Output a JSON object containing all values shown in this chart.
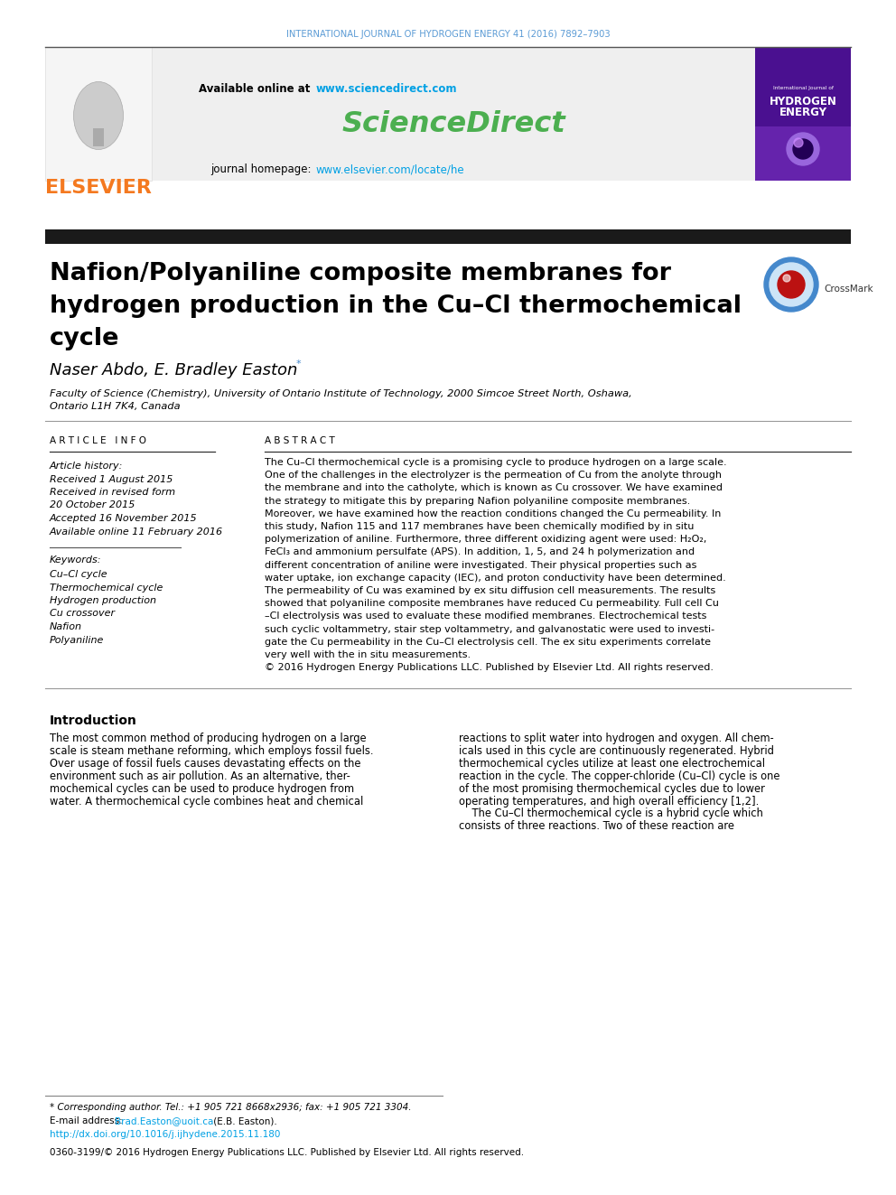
{
  "journal_header": "INTERNATIONAL JOURNAL OF HYDROGEN ENERGY 41 (2016) 7892–7903",
  "journal_header_color": "#5b9bd5",
  "sciencedirect_url": "www.sciencedirect.com",
  "sciencedirect_url_color": "#00a0e4",
  "sciencedirect_logo": "ScienceDirect",
  "sciencedirect_logo_color": "#4caf50",
  "journal_homepage_url": "www.elsevier.com/locate/he",
  "journal_homepage_url_color": "#00a0e4",
  "elsevier_text": "ELSEVIER",
  "elsevier_color": "#f47920",
  "paper_title_lines": [
    "Nafion/Polyaniline composite membranes for",
    "hydrogen production in the Cu–Cl thermochemical",
    "cycle"
  ],
  "authors_text": "Naser Abdo, E. Bradley Easton",
  "affiliation_line1": "Faculty of Science (Chemistry), University of Ontario Institute of Technology, 2000 Simcoe Street North, Oshawa,",
  "affiliation_line2": "Ontario L1H 7K4, Canada",
  "article_info_header": "A R T I C L E   I N F O",
  "abstract_header": "A B S T R A C T",
  "article_history": [
    "Article history:",
    "Received 1 August 2015",
    "Received in revised form",
    "20 October 2015",
    "Accepted 16 November 2015",
    "Available online 11 February 2016"
  ],
  "keywords_label": "Keywords:",
  "keywords": [
    "Cu–Cl cycle",
    "Thermochemical cycle",
    "Hydrogen production",
    "Cu crossover",
    "Nafion",
    "Polyaniline"
  ],
  "abstract_lines": [
    "The Cu–Cl thermochemical cycle is a promising cycle to produce hydrogen on a large scale.",
    "One of the challenges in the electrolyzer is the permeation of Cu from the anolyte through",
    "the membrane and into the catholyte, which is known as Cu crossover. We have examined",
    "the strategy to mitigate this by preparing Nafion polyaniline composite membranes.",
    "Moreover, we have examined how the reaction conditions changed the Cu permeability. In",
    "this study, Nafion 115 and 117 membranes have been chemically modified by in situ",
    "polymerization of aniline. Furthermore, three different oxidizing agent were used: H₂O₂,",
    "FeCl₃ and ammonium persulfate (APS). In addition, 1, 5, and 24 h polymerization and",
    "different concentration of aniline were investigated. Their physical properties such as",
    "water uptake, ion exchange capacity (IEC), and proton conductivity have been determined.",
    "The permeability of Cu was examined by ex situ diffusion cell measurements. The results",
    "showed that polyaniline composite membranes have reduced Cu permeability. Full cell Cu",
    "–Cl electrolysis was used to evaluate these modified membranes. Electrochemical tests",
    "such cyclic voltammetry, stair step voltammetry, and galvanostatic were used to investi-",
    "gate the Cu permeability in the Cu–Cl electrolysis cell. The ex situ experiments correlate",
    "very well with the in situ measurements.",
    "© 2016 Hydrogen Energy Publications LLC. Published by Elsevier Ltd. All rights reserved."
  ],
  "intro_header": "Introduction",
  "intro_left": [
    "The most common method of producing hydrogen on a large",
    "scale is steam methane reforming, which employs fossil fuels.",
    "Over usage of fossil fuels causes devastating effects on the",
    "environment such as air pollution. As an alternative, ther-",
    "mochemical cycles can be used to produce hydrogen from",
    "water. A thermochemical cycle combines heat and chemical"
  ],
  "intro_right": [
    "reactions to split water into hydrogen and oxygen. All chem-",
    "icals used in this cycle are continuously regenerated. Hybrid",
    "thermochemical cycles utilize at least one electrochemical",
    "reaction in the cycle. The copper-chloride (Cu–Cl) cycle is one",
    "of the most promising thermochemical cycles due to lower",
    "operating temperatures, and high overall efficiency [1,2].",
    "    The Cu–Cl thermochemical cycle is a hybrid cycle which",
    "consists of three reactions. Two of these reaction are"
  ],
  "footnote1": "* Corresponding author. Tel.: +1 905 721 8668x2936; fax: +1 905 721 3304.",
  "footnote_email_label": "E-mail address: ",
  "footnote_email": "Brad.Easton@uoit.ca",
  "footnote_email_color": "#00a0e4",
  "footnote_email_rest": " (E.B. Easton).",
  "footnote_doi": "http://dx.doi.org/10.1016/j.ijhydene.2015.11.180",
  "footnote_doi_color": "#00a0e4",
  "footnote_issn": "0360-3199/© 2016 Hydrogen Energy Publications LLC. Published by Elsevier Ltd. All rights reserved.",
  "bg_color": "#ffffff",
  "header_bg": "#efefef",
  "dark_bar": "#1a1a1a",
  "text_black": "#000000",
  "gray_line": "#999999"
}
